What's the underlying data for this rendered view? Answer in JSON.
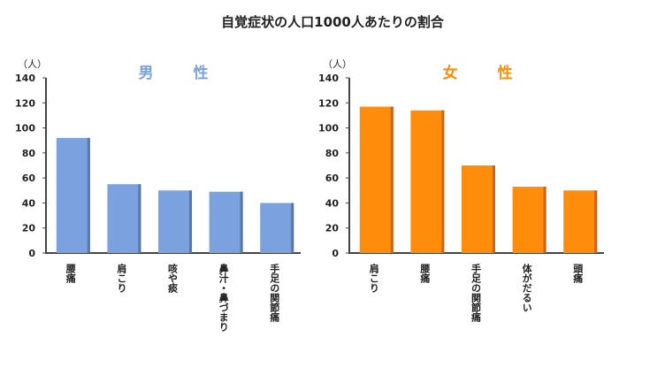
{
  "chart_data": [
    {
      "type": "bar",
      "title": "自覚症状の人口1000人あたりの割合",
      "subtitle": "男　性",
      "ylabel": "（人）",
      "ylim": [
        0,
        140
      ],
      "yticks": [
        0,
        20,
        40,
        60,
        80,
        100,
        120,
        140
      ],
      "categories": [
        "腰痛",
        "肩こり",
        "咳や痰",
        "鼻汁・鼻づまり",
        "手足の関節痛"
      ],
      "values": [
        92,
        55,
        50,
        49,
        40
      ],
      "color": "#7BA1DE",
      "shade": "#5577AA"
    },
    {
      "type": "bar",
      "subtitle": "女　性",
      "ylabel": "（人）",
      "ylim": [
        0,
        140
      ],
      "yticks": [
        0,
        20,
        40,
        60,
        80,
        100,
        120,
        140
      ],
      "categories": [
        "肩こり",
        "腰痛",
        "手足の関節痛",
        "体がだるい",
        "頭痛"
      ],
      "values": [
        117,
        114,
        70,
        53,
        50
      ],
      "color": "#FF8C0A",
      "shade": "#C8641E"
    }
  ]
}
